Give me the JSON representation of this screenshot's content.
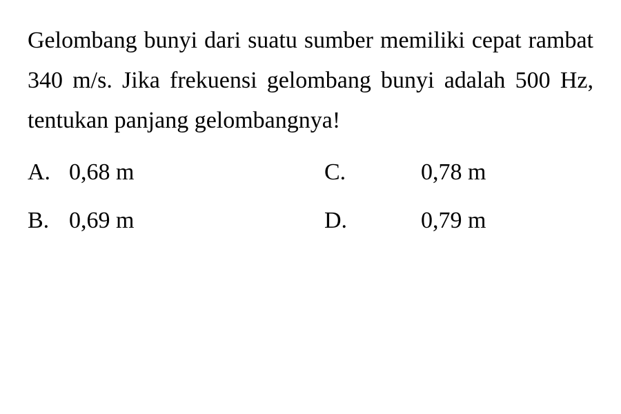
{
  "question": {
    "text": "Gelombang bunyi dari suatu sumber memiliki cepat rambat 340 m/s. Jika frekuensi gelombang bunyi adalah 500 Hz, tentukan panjang gelombangnya!"
  },
  "options": {
    "a": {
      "letter": "A.",
      "value": "0,68 m"
    },
    "b": {
      "letter": "B.",
      "value": "0,69 m"
    },
    "c": {
      "letter": "C.",
      "value": "0,78 m"
    },
    "d": {
      "letter": "D.",
      "value": "0,79 m"
    }
  },
  "styling": {
    "background_color": "#ffffff",
    "text_color": "#000000",
    "font_family": "Georgia, serif",
    "question_fontsize": 34,
    "option_fontsize": 34,
    "line_height": 1.7
  }
}
